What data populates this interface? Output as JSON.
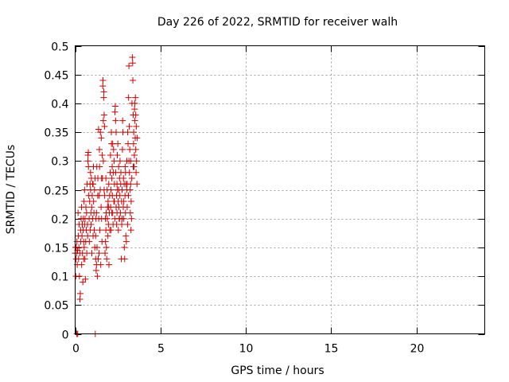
{
  "chart_data": {
    "type": "scatter",
    "title": "Day 226 of 2022, SRMTID for receiver walh",
    "xlabel": "GPS time / hours",
    "ylabel": "SRMTID / TECUs",
    "xlim": [
      0,
      24
    ],
    "ylim": [
      0,
      0.5
    ],
    "xticks": [
      0,
      5,
      10,
      15,
      20
    ],
    "yticks": [
      0,
      0.05,
      0.1,
      0.15,
      0.2,
      0.25,
      0.3,
      0.35,
      0.4,
      0.45,
      0.5
    ],
    "xtick_labels": [
      "0",
      "5",
      "10",
      "15",
      "20"
    ],
    "ytick_labels": [
      "0",
      "0.05",
      "0.1",
      "0.15",
      "0.2",
      "0.25",
      "0.3",
      "0.35",
      "0.4",
      "0.45",
      "0.5"
    ],
    "grid": true,
    "marker": "+",
    "color": "#d40000",
    "series": [
      {
        "values": [
          [
            0.0,
            0.14
          ],
          [
            0.02,
            0.15
          ],
          [
            0.04,
            0.1
          ],
          [
            0.05,
            0.13
          ],
          [
            0.06,
            0.15
          ],
          [
            0.08,
            0.14
          ],
          [
            0.1,
            0.16
          ],
          [
            0.1,
            0.0
          ],
          [
            0.12,
            0.12
          ],
          [
            0.14,
            0.145
          ],
          [
            0.15,
            0.0
          ],
          [
            0.17,
            0.21
          ],
          [
            0.18,
            0.17
          ],
          [
            0.2,
            0.13
          ],
          [
            0.22,
            0.15
          ],
          [
            0.23,
            0.19
          ],
          [
            0.25,
            0.1
          ],
          [
            0.27,
            0.14
          ],
          [
            0.28,
            0.06
          ],
          [
            0.3,
            0.07
          ],
          [
            0.32,
            0.18
          ],
          [
            0.33,
            0.16
          ],
          [
            0.35,
            0.2
          ],
          [
            0.37,
            0.22
          ],
          [
            0.38,
            0.12
          ],
          [
            0.4,
            0.17
          ],
          [
            0.42,
            0.19
          ],
          [
            0.43,
            0.14
          ],
          [
            0.45,
            0.09
          ],
          [
            0.47,
            0.18
          ],
          [
            0.48,
            0.2
          ],
          [
            0.5,
            0.16
          ],
          [
            0.52,
            0.23
          ],
          [
            0.53,
            0.15
          ],
          [
            0.55,
            0.19
          ],
          [
            0.57,
            0.13
          ],
          [
            0.58,
            0.2
          ],
          [
            0.6,
            0.095
          ],
          [
            0.62,
            0.16
          ],
          [
            0.63,
            0.22
          ],
          [
            0.65,
            0.18
          ],
          [
            0.67,
            0.21
          ],
          [
            0.68,
            0.14
          ],
          [
            0.7,
            0.26
          ],
          [
            0.72,
            0.19
          ],
          [
            0.73,
            0.17
          ],
          [
            0.75,
            0.3
          ],
          [
            0.77,
            0.315
          ],
          [
            0.78,
            0.29
          ],
          [
            0.8,
            0.24
          ],
          [
            0.82,
            0.2
          ],
          [
            0.83,
            0.16
          ],
          [
            0.85,
            0.23
          ],
          [
            0.87,
            0.26
          ],
          [
            0.88,
            0.18
          ],
          [
            0.9,
            0.25
          ],
          [
            0.92,
            0.21
          ],
          [
            0.93,
            0.19
          ],
          [
            0.95,
            0.27
          ],
          [
            0.97,
            0.22
          ],
          [
            0.98,
            0.14
          ],
          [
            1.0,
            0.24
          ],
          [
            1.02,
            0.26
          ],
          [
            1.03,
            0.2
          ],
          [
            1.05,
            0.17
          ],
          [
            1.07,
            0.29
          ],
          [
            1.08,
            0.23
          ],
          [
            1.1,
            0.21
          ],
          [
            1.12,
            0.18
          ],
          [
            1.13,
            0.25
          ],
          [
            1.15,
            0.15
          ],
          [
            1.17,
            0.27
          ],
          [
            1.18,
            0.0
          ],
          [
            1.2,
            0.13
          ],
          [
            1.22,
            0.2
          ],
          [
            1.23,
            0.11
          ],
          [
            1.25,
            0.12
          ],
          [
            1.27,
            0.29
          ],
          [
            1.28,
            0.15
          ],
          [
            1.3,
            0.1
          ],
          [
            1.32,
            0.24
          ],
          [
            1.33,
            0.27
          ],
          [
            1.35,
            0.13
          ],
          [
            1.37,
            0.355
          ],
          [
            1.38,
            0.2
          ],
          [
            1.4,
            0.14
          ],
          [
            1.42,
            0.32
          ],
          [
            1.43,
            0.29
          ],
          [
            1.45,
            0.18
          ],
          [
            1.47,
            0.25
          ],
          [
            1.48,
            0.35
          ],
          [
            1.5,
            0.12
          ],
          [
            1.52,
            0.22
          ],
          [
            1.53,
            0.34
          ],
          [
            1.55,
            0.2
          ],
          [
            1.57,
            0.16
          ],
          [
            1.58,
            0.31
          ],
          [
            1.6,
            0.27
          ],
          [
            1.62,
            0.43
          ],
          [
            1.63,
            0.44
          ],
          [
            1.65,
            0.37
          ],
          [
            1.67,
            0.41
          ],
          [
            1.68,
            0.42
          ],
          [
            1.7,
            0.38
          ],
          [
            1.72,
            0.36
          ],
          [
            1.73,
            0.24
          ],
          [
            1.75,
            0.14
          ],
          [
            1.77,
            0.2
          ],
          [
            1.78,
            0.16
          ],
          [
            1.8,
            0.18
          ],
          [
            1.82,
            0.21
          ],
          [
            1.83,
            0.15
          ],
          [
            1.85,
            0.13
          ],
          [
            1.87,
            0.25
          ],
          [
            1.88,
            0.2
          ],
          [
            1.9,
            0.22
          ],
          [
            1.92,
            0.17
          ],
          [
            1.93,
            0.23
          ],
          [
            1.95,
            0.19
          ],
          [
            1.97,
            0.26
          ],
          [
            1.98,
            0.12
          ],
          [
            2.0,
            0.21
          ],
          [
            2.02,
            0.24
          ],
          [
            2.03,
            0.18
          ],
          [
            2.05,
            0.28
          ],
          [
            2.07,
            0.31
          ],
          [
            2.08,
            0.22
          ],
          [
            2.1,
            0.25
          ],
          [
            2.12,
            0.35
          ],
          [
            2.13,
            0.33
          ],
          [
            2.15,
            0.27
          ],
          [
            2.17,
            0.29
          ],
          [
            2.18,
            0.24
          ],
          [
            2.2,
            0.21
          ],
          [
            2.22,
            0.19
          ],
          [
            2.23,
            0.28
          ],
          [
            2.25,
            0.32
          ],
          [
            2.27,
            0.23
          ],
          [
            2.28,
            0.3
          ],
          [
            2.3,
            0.26
          ],
          [
            2.32,
            0.2
          ],
          [
            2.33,
            0.385
          ],
          [
            2.35,
            0.395
          ],
          [
            2.37,
            0.37
          ],
          [
            2.38,
            0.28
          ],
          [
            2.4,
            0.22
          ],
          [
            2.42,
            0.24
          ],
          [
            2.43,
            0.19
          ],
          [
            2.45,
            0.26
          ],
          [
            2.47,
            0.31
          ],
          [
            2.48,
            0.25
          ],
          [
            2.5,
            0.33
          ],
          [
            2.52,
            0.23
          ],
          [
            2.53,
            0.18
          ],
          [
            2.55,
            0.29
          ],
          [
            2.57,
            0.22
          ],
          [
            2.58,
            0.2
          ],
          [
            2.6,
            0.27
          ],
          [
            2.62,
            0.24
          ],
          [
            2.63,
            0.3
          ],
          [
            2.65,
            0.21
          ],
          [
            2.67,
            0.26
          ],
          [
            2.68,
            0.28
          ],
          [
            2.7,
            0.13
          ],
          [
            2.72,
            0.23
          ],
          [
            2.73,
            0.19
          ],
          [
            2.75,
            0.25
          ],
          [
            2.77,
            0.32
          ],
          [
            2.78,
            0.37
          ],
          [
            2.8,
            0.35
          ],
          [
            2.82,
            0.22
          ],
          [
            2.83,
            0.27
          ],
          [
            2.85,
            0.2
          ],
          [
            2.87,
            0.26
          ],
          [
            2.88,
            0.15
          ],
          [
            2.9,
            0.13
          ],
          [
            2.92,
            0.24
          ],
          [
            2.93,
            0.29
          ],
          [
            2.95,
            0.21
          ],
          [
            2.97,
            0.17
          ],
          [
            2.98,
            0.26
          ],
          [
            3.0,
            0.16
          ],
          [
            3.02,
            0.25
          ],
          [
            3.03,
            0.3
          ],
          [
            3.05,
            0.22
          ],
          [
            3.07,
            0.19
          ],
          [
            3.08,
            0.35
          ],
          [
            3.1,
            0.33
          ],
          [
            3.12,
            0.24
          ],
          [
            3.13,
            0.41
          ],
          [
            3.15,
            0.465
          ],
          [
            3.17,
            0.36
          ],
          [
            3.18,
            0.28
          ],
          [
            3.2,
            0.32
          ],
          [
            3.22,
            0.25
          ],
          [
            3.23,
            0.21
          ],
          [
            3.25,
            0.3
          ],
          [
            3.27,
            0.18
          ],
          [
            3.28,
            0.23
          ],
          [
            3.3,
            0.2
          ],
          [
            3.32,
            0.27
          ],
          [
            3.33,
            0.4
          ],
          [
            3.35,
            0.48
          ],
          [
            3.37,
            0.47
          ],
          [
            3.38,
            0.44
          ],
          [
            3.4,
            0.38
          ],
          [
            3.42,
            0.33
          ],
          [
            3.43,
            0.35
          ],
          [
            3.45,
            0.29
          ],
          [
            3.47,
            0.31
          ],
          [
            3.48,
            0.39
          ],
          [
            3.5,
            0.37
          ],
          [
            3.52,
            0.34
          ],
          [
            3.53,
            0.41
          ],
          [
            3.55,
            0.32
          ],
          [
            3.57,
            0.28
          ],
          [
            3.58,
            0.36
          ],
          [
            3.6,
            0.3
          ],
          [
            3.62,
            0.26
          ],
          [
            3.63,
            0.34
          ],
          [
            0.5,
            0.13
          ],
          [
            0.55,
            0.25
          ],
          [
            0.75,
            0.31
          ],
          [
            0.9,
            0.28
          ],
          [
            1.05,
            0.26
          ],
          [
            1.2,
            0.17
          ],
          [
            1.25,
            0.21
          ],
          [
            1.4,
            0.24
          ],
          [
            1.55,
            0.27
          ],
          [
            1.65,
            0.3
          ],
          [
            1.7,
            0.25
          ],
          [
            1.8,
            0.27
          ],
          [
            1.95,
            0.22
          ],
          [
            2.1,
            0.18
          ],
          [
            2.15,
            0.21
          ],
          [
            2.3,
            0.23
          ],
          [
            2.45,
            0.21
          ],
          [
            2.55,
            0.25
          ],
          [
            2.6,
            0.2
          ],
          [
            2.75,
            0.2
          ],
          [
            2.85,
            0.23
          ],
          [
            2.95,
            0.28
          ],
          [
            3.05,
            0.26
          ],
          [
            3.15,
            0.3
          ],
          [
            3.25,
            0.26
          ],
          [
            3.4,
            0.29
          ],
          [
            3.5,
            0.4
          ],
          [
            3.55,
            0.38
          ],
          [
            2.4,
            0.35
          ],
          [
            2.2,
            0.33
          ]
        ]
      }
    ]
  }
}
